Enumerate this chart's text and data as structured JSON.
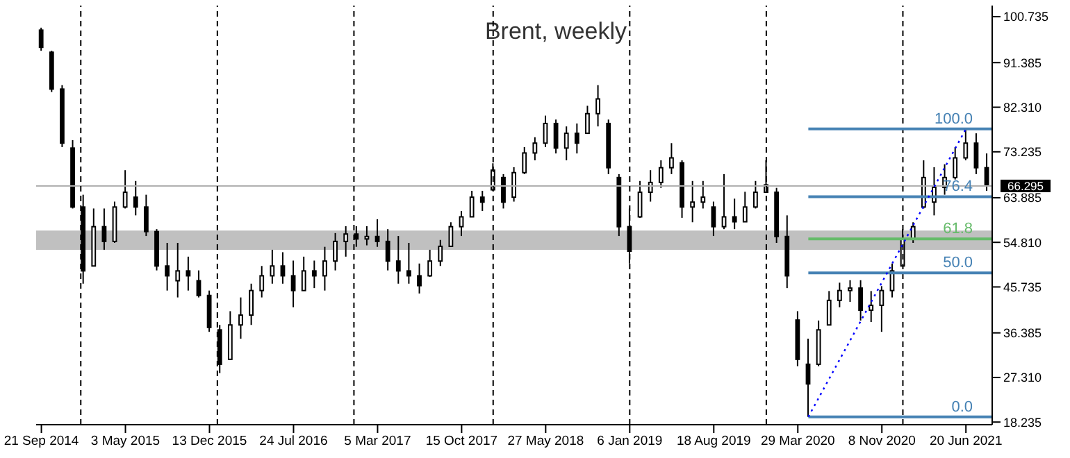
{
  "chart_data": {
    "type": "candlestick",
    "title": "Brent, weekly",
    "color": "#000000",
    "x": [
      "2014-09-21",
      "2014-10-19",
      "2014-11-16",
      "2014-12-14",
      "2015-01-11",
      "2015-02-08",
      "2015-03-08",
      "2015-04-05",
      "2015-05-03",
      "2015-05-31",
      "2015-06-28",
      "2015-07-26",
      "2015-08-23",
      "2015-09-20",
      "2015-10-18",
      "2015-11-15",
      "2015-12-13",
      "2016-01-10",
      "2016-02-07",
      "2016-03-06",
      "2016-04-03",
      "2016-05-01",
      "2016-05-29",
      "2016-06-26",
      "2016-07-24",
      "2016-08-21",
      "2016-09-18",
      "2016-10-16",
      "2016-11-13",
      "2016-12-11",
      "2017-01-08",
      "2017-02-05",
      "2017-03-05",
      "2017-04-02",
      "2017-04-30",
      "2017-05-28",
      "2017-06-25",
      "2017-07-23",
      "2017-08-20",
      "2017-09-17",
      "2017-10-15",
      "2017-11-12",
      "2017-12-10",
      "2018-01-07",
      "2018-02-04",
      "2018-03-04",
      "2018-04-01",
      "2018-04-29",
      "2018-05-27",
      "2018-06-24",
      "2018-07-22",
      "2018-08-19",
      "2018-09-16",
      "2018-10-14",
      "2018-11-11",
      "2018-12-09",
      "2019-01-06",
      "2019-02-03",
      "2019-03-03",
      "2019-03-31",
      "2019-04-28",
      "2019-05-26",
      "2019-06-23",
      "2019-07-21",
      "2019-08-18",
      "2019-09-15",
      "2019-10-13",
      "2019-11-10",
      "2019-12-08",
      "2020-01-05",
      "2020-02-02",
      "2020-03-01",
      "2020-03-29",
      "2020-04-26",
      "2020-05-24",
      "2020-06-21",
      "2020-07-19",
      "2020-08-16",
      "2020-09-13",
      "2020-10-11",
      "2020-11-08",
      "2020-12-06",
      "2021-01-03",
      "2021-01-31",
      "2021-02-28",
      "2021-03-28",
      "2021-04-25",
      "2021-05-23",
      "2021-06-20",
      "2021-07-18",
      "2021-08-15"
    ],
    "ohlc": [
      [
        98,
        98.5,
        93.8,
        94.5
      ],
      [
        93.5,
        93.8,
        85.4,
        86
      ],
      [
        86,
        86.8,
        74.2,
        75
      ],
      [
        74,
        75.6,
        61.7,
        62
      ],
      [
        62,
        64.5,
        46.4,
        49
      ],
      [
        50,
        61.7,
        50,
        58
      ],
      [
        58,
        61.7,
        53.3,
        55
      ],
      [
        55,
        63.1,
        54.7,
        62
      ],
      [
        62,
        69.5,
        61.7,
        65
      ],
      [
        64,
        67.3,
        60.3,
        62
      ],
      [
        62,
        64.5,
        56.1,
        57
      ],
      [
        57,
        57.5,
        49.1,
        50
      ],
      [
        50,
        54.7,
        45,
        48
      ],
      [
        47,
        54.7,
        43.6,
        49
      ],
      [
        49,
        51.9,
        45,
        48
      ],
      [
        47,
        49.1,
        43.6,
        44
      ],
      [
        44,
        45,
        36.6,
        37.5
      ],
      [
        37,
        38,
        28.2,
        30
      ],
      [
        31,
        40.8,
        31,
        38
      ],
      [
        38,
        43.6,
        35.2,
        40
      ],
      [
        40,
        46.4,
        38,
        45
      ],
      [
        45,
        50,
        43.6,
        48
      ],
      [
        48,
        53.3,
        46.4,
        50
      ],
      [
        50,
        52.8,
        46.4,
        48
      ],
      [
        48,
        51.1,
        41.6,
        45
      ],
      [
        45,
        51.9,
        45,
        49
      ],
      [
        49,
        51.1,
        45.5,
        48
      ],
      [
        48,
        53.9,
        45,
        51
      ],
      [
        51,
        56.7,
        49.1,
        55
      ],
      [
        55,
        58.1,
        51.9,
        56.5
      ],
      [
        56.5,
        58.1,
        53.9,
        55.5
      ],
      [
        55.5,
        58.1,
        54.2,
        56
      ],
      [
        56,
        59.5,
        53.9,
        55
      ],
      [
        55,
        57.5,
        49.1,
        51
      ],
      [
        51,
        56.1,
        46.4,
        49
      ],
      [
        49,
        54.7,
        46.4,
        48
      ],
      [
        48,
        50.5,
        44.4,
        46
      ],
      [
        48,
        53.3,
        47.8,
        51
      ],
      [
        51,
        55.3,
        50,
        54
      ],
      [
        54,
        58.9,
        53.9,
        58
      ],
      [
        58,
        61.2,
        56.1,
        60
      ],
      [
        60,
        65.3,
        60,
        64
      ],
      [
        64,
        65.3,
        61.2,
        63
      ],
      [
        65.5,
        70.9,
        65.3,
        69.5
      ],
      [
        68,
        68.7,
        61.7,
        63
      ],
      [
        64,
        70.1,
        63.1,
        69
      ],
      [
        69,
        74.2,
        68.7,
        73
      ],
      [
        73,
        76.2,
        71.5,
        75
      ],
      [
        75,
        80.6,
        74.2,
        79
      ],
      [
        79,
        79.8,
        72.9,
        74
      ],
      [
        74,
        78.4,
        71.5,
        77
      ],
      [
        77,
        79,
        72.9,
        75
      ],
      [
        77,
        82.6,
        77,
        81
      ],
      [
        81,
        86.8,
        78.4,
        84
      ],
      [
        79,
        79.8,
        68.7,
        70
      ],
      [
        68,
        68.7,
        56.1,
        58
      ],
      [
        58,
        61.7,
        50.5,
        53
      ],
      [
        60,
        67.3,
        59.8,
        65
      ],
      [
        65,
        69.5,
        63.1,
        67
      ],
      [
        67,
        71.5,
        65.9,
        70
      ],
      [
        70,
        75,
        68.7,
        72
      ],
      [
        71,
        71.5,
        59.8,
        62
      ],
      [
        62,
        67.3,
        58.9,
        63
      ],
      [
        63,
        67.3,
        61.7,
        64
      ],
      [
        62,
        63.1,
        56.1,
        58
      ],
      [
        58,
        68.7,
        57.5,
        60
      ],
      [
        60,
        63.7,
        57.5,
        59
      ],
      [
        59,
        65.1,
        59,
        62
      ],
      [
        62,
        67.3,
        61.7,
        65
      ],
      [
        65,
        71.5,
        65,
        66.5
      ],
      [
        65,
        65.9,
        54.7,
        56
      ],
      [
        56,
        60.3,
        45.5,
        48
      ],
      [
        39,
        40.8,
        29.6,
        31
      ],
      [
        30,
        35.2,
        19.3,
        26
      ],
      [
        30,
        38.9,
        29.6,
        37
      ],
      [
        38,
        44.9,
        38,
        43
      ],
      [
        43,
        46.6,
        41.6,
        45
      ],
      [
        45,
        47.1,
        42.7,
        45.5
      ],
      [
        45.5,
        47.1,
        38.9,
        41
      ],
      [
        41,
        44.9,
        38.6,
        42
      ],
      [
        42,
        45.9,
        36.6,
        45
      ],
      [
        45,
        50.5,
        43.6,
        49
      ],
      [
        50,
        57.5,
        50,
        55.5
      ],
      [
        55.5,
        58.9,
        54.7,
        58
      ],
      [
        62,
        71.5,
        61.7,
        68
      ],
      [
        63,
        70.1,
        60.3,
        66
      ],
      [
        66,
        70.7,
        64.5,
        68
      ],
      [
        68,
        74.2,
        67.6,
        72
      ],
      [
        72,
        77.9,
        71.5,
        75
      ],
      [
        75,
        77,
        68.7,
        70
      ],
      [
        70,
        72.9,
        65.3,
        66.3
      ]
    ],
    "series": [
      {
        "type": "line",
        "name": "100.0",
        "color": "#4682b4",
        "x": [
          "2020-04-26",
          "2021-08-29"
        ],
        "values": [
          77.9,
          77.9
        ]
      },
      {
        "type": "line",
        "name": "76.4",
        "color": "#4682b4",
        "x": [
          "2020-04-26",
          "2021-08-29"
        ],
        "values": [
          64.1,
          64.1
        ]
      },
      {
        "type": "line",
        "name": "61.8",
        "color": "#66bb6a",
        "x": [
          "2020-04-26",
          "2021-08-29"
        ],
        "values": [
          55.5,
          55.5
        ]
      },
      {
        "type": "line",
        "name": "50.0",
        "color": "#4682b4",
        "x": [
          "2020-04-26",
          "2021-08-29"
        ],
        "values": [
          48.6,
          48.6
        ]
      },
      {
        "type": "line",
        "name": "0.0",
        "color": "#4682b4",
        "x": [
          "2020-04-26",
          "2021-08-29"
        ],
        "values": [
          19.3,
          19.3
        ]
      },
      {
        "type": "line",
        "color": "#0000ff",
        "line_style": "dotted",
        "x": [
          "2020-04-26",
          "2021-06-20"
        ],
        "values": [
          19.3,
          77.9
        ]
      }
    ],
    "xlim": [
      "2014-09-07",
      "2021-08-29"
    ],
    "xticks": [
      {
        "value": "2014-09-21",
        "label": "21 Sep 2014"
      },
      {
        "value": "2015-05-03",
        "label": "3 May 2015"
      },
      {
        "value": "2015-12-13",
        "label": "13 Dec 2015"
      },
      {
        "value": "2016-07-24",
        "label": "24 Jul 2016"
      },
      {
        "value": "2017-03-05",
        "label": "5 Mar 2017"
      },
      {
        "value": "2017-10-15",
        "label": "15 Oct 2017"
      },
      {
        "value": "2018-05-27",
        "label": "27 May 2018"
      },
      {
        "value": "2019-01-06",
        "label": "6 Jan 2019"
      },
      {
        "value": "2019-08-18",
        "label": "18 Aug 2019"
      },
      {
        "value": "2020-03-29",
        "label": "29 Mar 2020"
      },
      {
        "value": "2020-11-08",
        "label": "8 Nov 2020"
      },
      {
        "value": "2021-06-20",
        "label": "20 Jun 2021"
      }
    ],
    "ylim": [
      17.7,
      103
    ],
    "yticks": [
      18.235,
      {
        "value": 27.31,
        "label": "27.310"
      },
      36.385,
      45.735,
      {
        "value": 54.81,
        "label": "54.810"
      },
      63.885,
      73.235,
      {
        "value": 82.31,
        "label": "82.310"
      },
      91.385,
      100.735
    ],
    "ref_lines": [
      {
        "axis": "y",
        "value": 66.295,
        "label": "66.295",
        "color": "#b0b0b0"
      },
      {
        "axis": "x",
        "value": "2015-01-04",
        "color": "#000000",
        "line_style": "dashed"
      },
      {
        "axis": "x",
        "value": "2016-01-03",
        "color": "#000000",
        "line_style": "dashed"
      },
      {
        "axis": "x",
        "value": "2017-01-01",
        "color": "#000000",
        "line_style": "dashed"
      },
      {
        "axis": "x",
        "value": "2018-01-07",
        "color": "#000000",
        "line_style": "dashed"
      },
      {
        "axis": "x",
        "value": "2019-01-06",
        "color": "#000000",
        "line_style": "dashed"
      },
      {
        "axis": "x",
        "value": "2020-01-05",
        "color": "#000000",
        "line_style": "dashed"
      },
      {
        "axis": "x",
        "value": "2021-01-03",
        "color": "#000000",
        "line_style": "dashed"
      }
    ],
    "bands": [
      {
        "axis": "y",
        "from": 53.3,
        "to": 57.2,
        "color": "#c0c0c0"
      }
    ],
    "legend": false,
    "grid": false
  }
}
